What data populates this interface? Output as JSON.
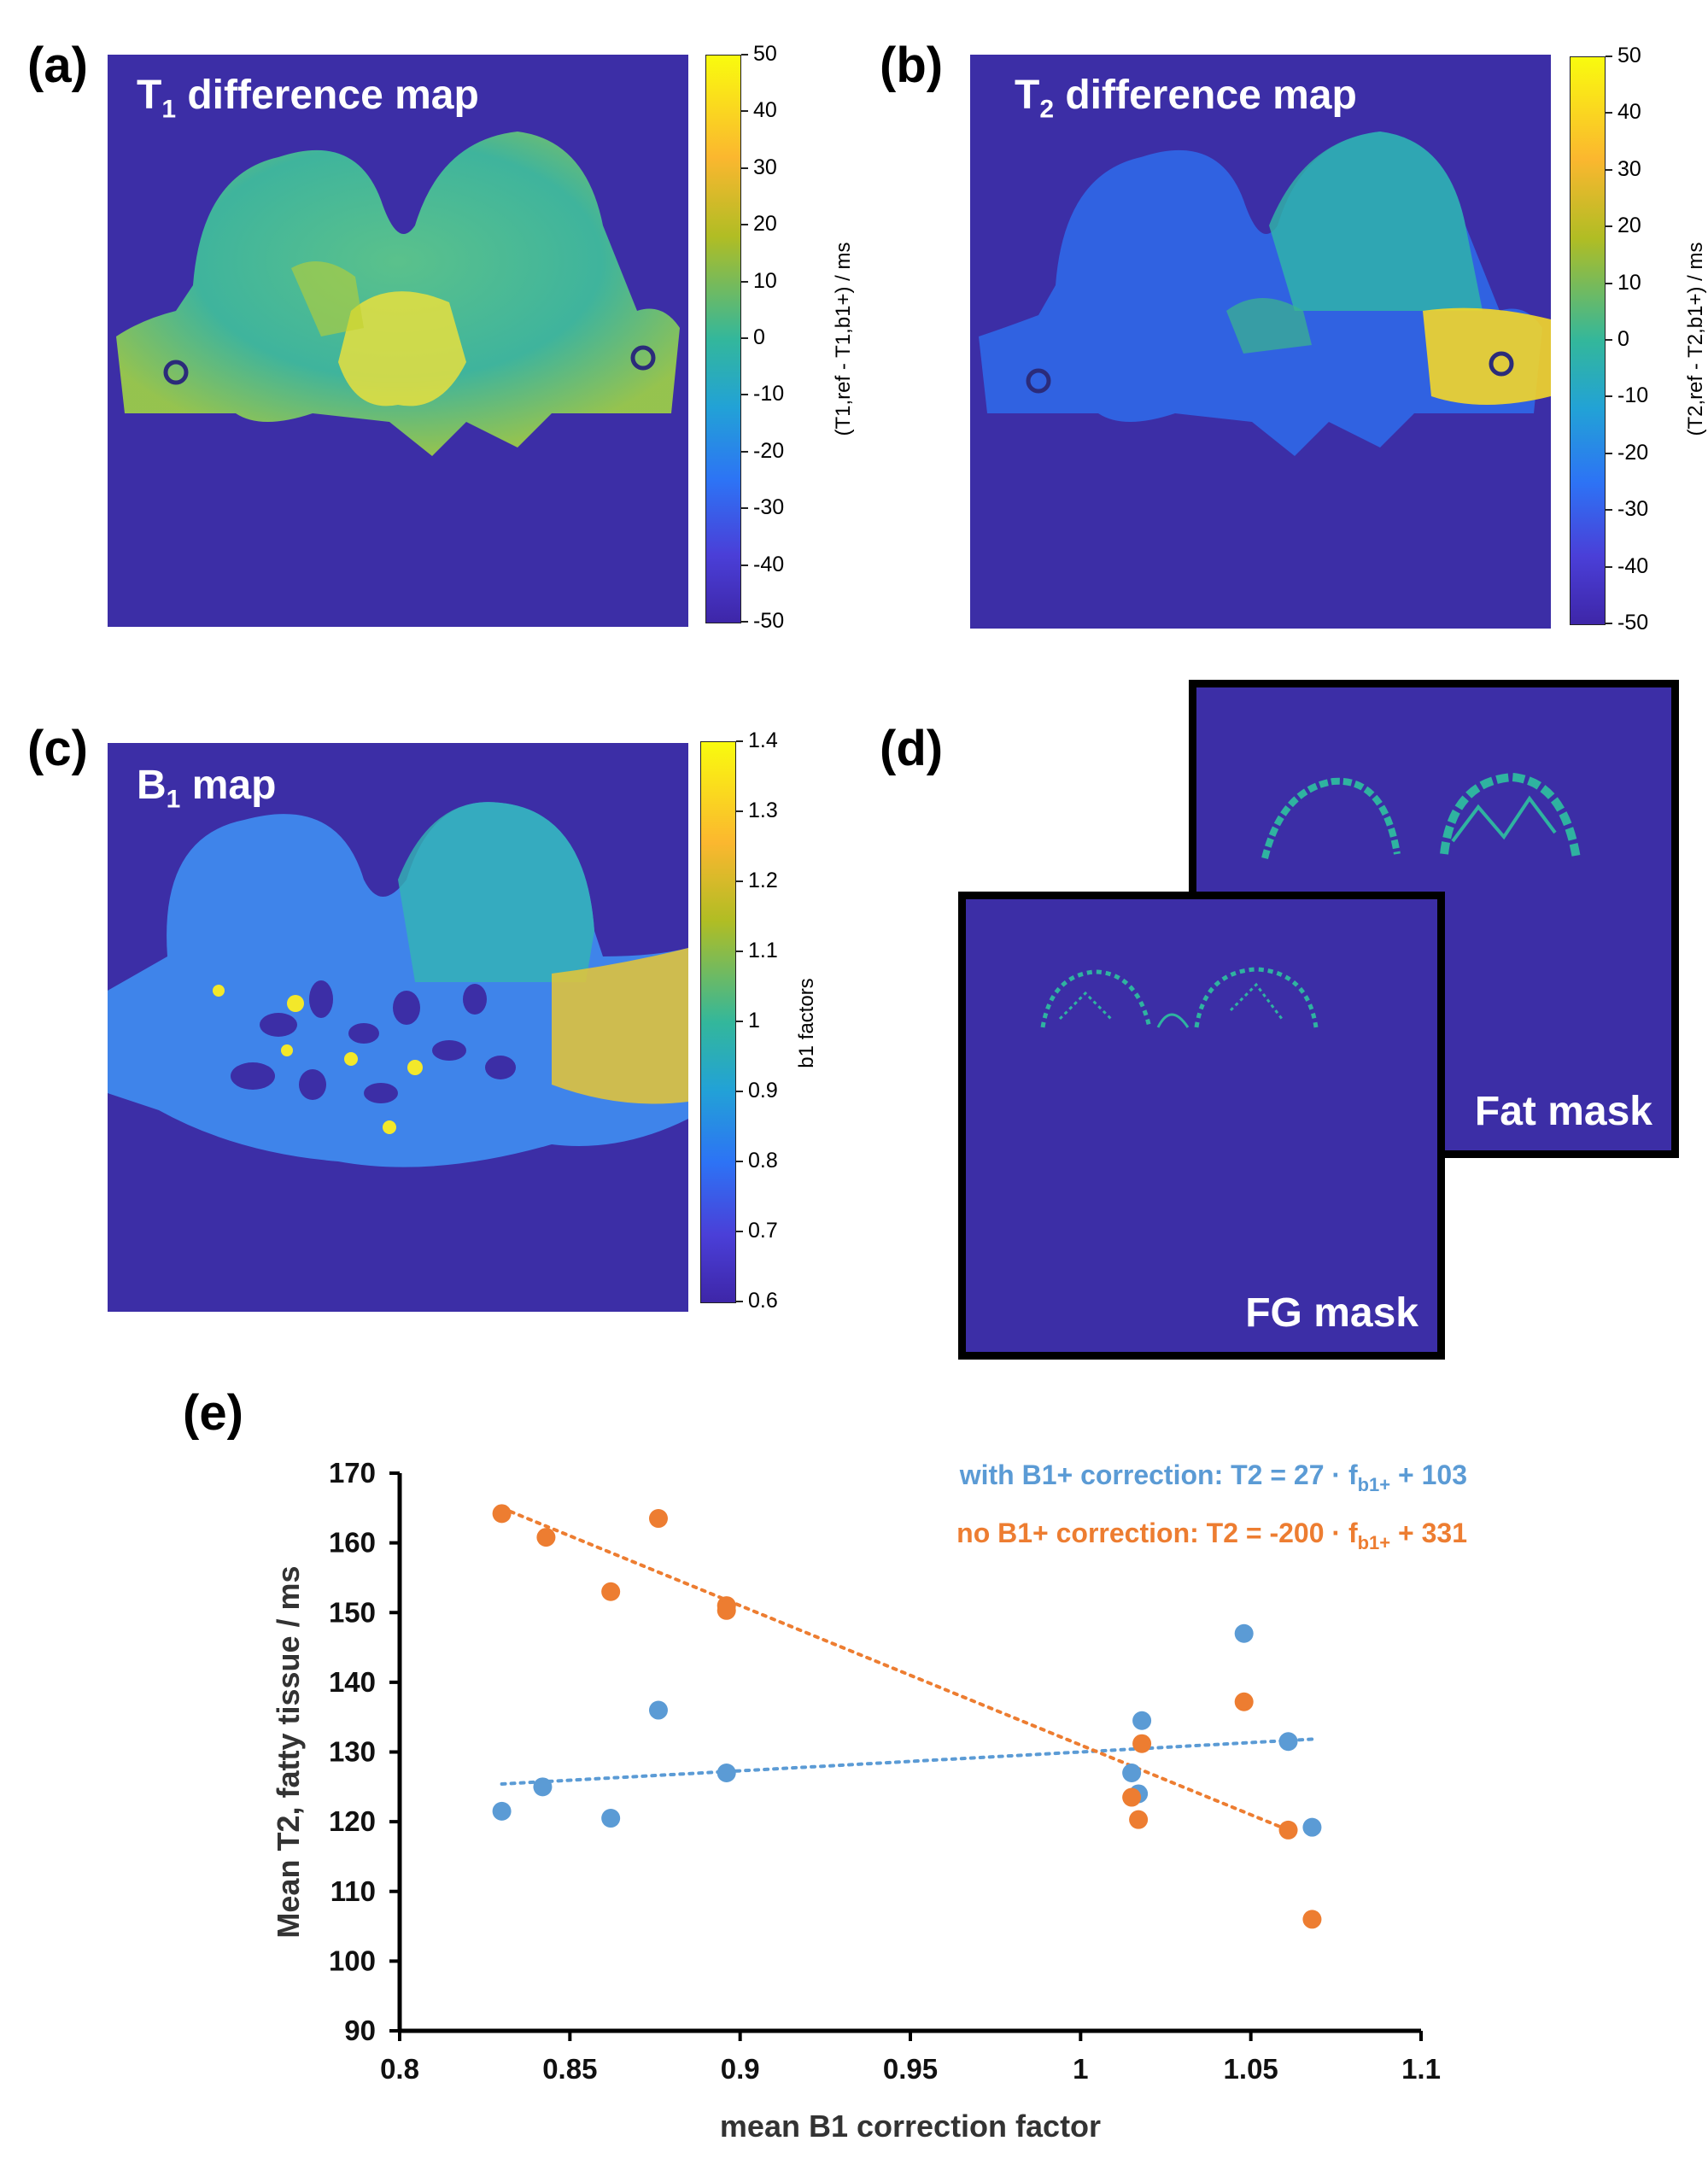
{
  "panels": {
    "a": {
      "letter": "(a)",
      "title_main": "T",
      "title_sub": "1",
      "title_rest": " difference map",
      "colorbar_ticks": [
        "50",
        "40",
        "30",
        "20",
        "10",
        "0",
        "-10",
        "-20",
        "-30",
        "-40",
        "-50"
      ],
      "colorbar_label": "(T1,ref - T1,b1+) / ms"
    },
    "b": {
      "letter": "(b)",
      "title_main": "T",
      "title_sub": "2",
      "title_rest": " difference map",
      "colorbar_ticks": [
        "50",
        "40",
        "30",
        "20",
        "10",
        "0",
        "-10",
        "-20",
        "-30",
        "-40",
        "-50"
      ],
      "colorbar_label": "(T2,ref - T2,b1+) / ms"
    },
    "c": {
      "letter": "(c)",
      "title_main": "B",
      "title_sub": "1",
      "title_rest": " map",
      "colorbar_ticks": [
        "1.4",
        "1.3",
        "1.2",
        "1.1",
        "1",
        "0.9",
        "0.8",
        "0.7",
        "0.6"
      ],
      "colorbar_label": "b1 factors"
    },
    "d": {
      "letter": "(d)",
      "fat_mask_label": "Fat mask",
      "fg_mask_label": "FG mask"
    },
    "e": {
      "letter": "(e)"
    }
  },
  "colors": {
    "map_background": "#3c2ea6",
    "mask_tissue": "#2fb3a0",
    "with_correction": "#5b9bd5",
    "no_correction": "#ed7d31"
  },
  "chart_data": {
    "type": "scatter",
    "title": "",
    "xlabel": "mean B1 correction factor",
    "ylabel": "Mean T2, fatty tissue / ms",
    "xlim": [
      0.8,
      1.1
    ],
    "ylim": [
      90,
      170
    ],
    "xticks": [
      "0.8",
      "0.85",
      "0.9",
      "0.95",
      "1",
      "1.05",
      "1.1"
    ],
    "yticks": [
      "90",
      "100",
      "110",
      "120",
      "130",
      "140",
      "150",
      "160",
      "170"
    ],
    "grid": false,
    "legend_placement": "top-right",
    "series": [
      {
        "name": "with B1+ correction",
        "legend_prefix": "with B1+ correction: T2 = 27 · f",
        "legend_sub": "b1+",
        "legend_suffix": " + 103",
        "color": "#5b9bd5",
        "trendline": {
          "slope": 27,
          "intercept": 103,
          "x_range": [
            0.83,
            1.068
          ]
        },
        "points": [
          [
            0.83,
            121.5
          ],
          [
            0.842,
            125
          ],
          [
            0.862,
            120.5
          ],
          [
            0.876,
            136
          ],
          [
            0.896,
            127
          ],
          [
            1.015,
            127
          ],
          [
            1.017,
            124
          ],
          [
            1.018,
            134.5
          ],
          [
            1.048,
            147
          ],
          [
            1.061,
            131.5
          ],
          [
            1.068,
            119.2
          ]
        ]
      },
      {
        "name": "no B1+ correction",
        "legend_prefix": "no B1+ correction: T2 = -200 · f",
        "legend_sub": "b1+",
        "legend_suffix": " + 331",
        "color": "#ed7d31",
        "trendline": {
          "slope": -200,
          "intercept": 331,
          "x_range": [
            0.83,
            1.061
          ]
        },
        "points": [
          [
            0.83,
            164.2
          ],
          [
            0.843,
            160.8
          ],
          [
            0.862,
            153
          ],
          [
            0.876,
            163.5
          ],
          [
            0.896,
            151
          ],
          [
            0.896,
            150.3
          ],
          [
            1.015,
            123.5
          ],
          [
            1.017,
            120.3
          ],
          [
            1.018,
            131.2
          ],
          [
            1.048,
            137.2
          ],
          [
            1.061,
            118.8
          ],
          [
            1.068,
            106
          ]
        ]
      }
    ]
  }
}
